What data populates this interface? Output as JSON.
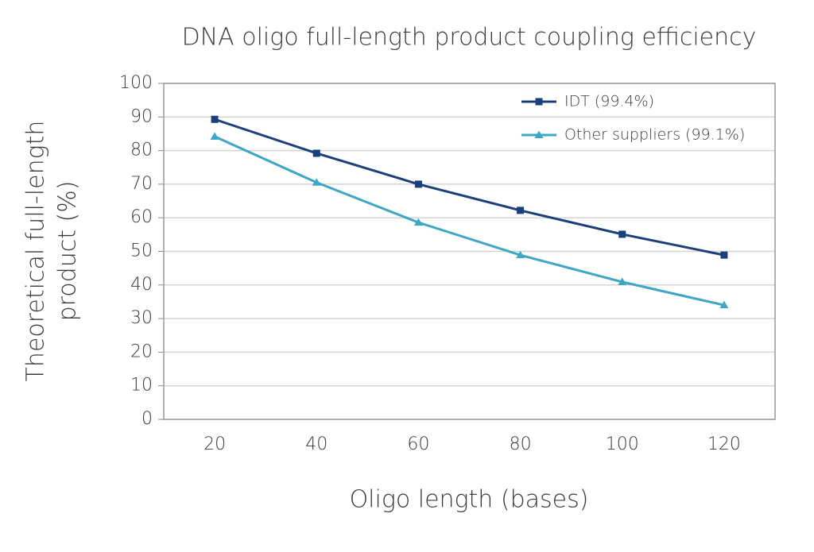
{
  "chart_data": {
    "type": "line",
    "title": "DNA oligo full-length product coupling efficiency",
    "xlabel": "Oligo length (bases)",
    "ylabel": [
      "Theoretical full-length",
      "product (%)"
    ],
    "x": [
      20,
      40,
      60,
      80,
      100,
      120
    ],
    "xlim": [
      10,
      130
    ],
    "xticks": [
      20,
      40,
      60,
      80,
      100,
      120
    ],
    "ylim": [
      0,
      100
    ],
    "yticks": [
      0,
      10,
      20,
      30,
      40,
      50,
      60,
      70,
      80,
      90,
      100
    ],
    "grid": true,
    "legend": "upper right",
    "series": [
      {
        "name": "IDT (99.4%)",
        "color": "#1b3f7a",
        "marker": "square",
        "values": [
          89.3,
          79.2,
          70.0,
          62.2,
          55.1,
          48.9
        ]
      },
      {
        "name": "Other suppliers (99.1%)",
        "color": "#3fa6c5",
        "marker": "triangle",
        "values": [
          84.2,
          70.5,
          58.6,
          48.9,
          40.9,
          34.0
        ]
      }
    ]
  }
}
